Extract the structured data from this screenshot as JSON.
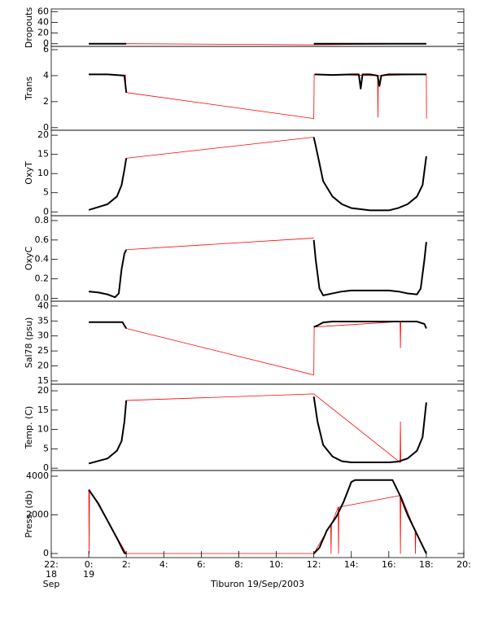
{
  "chart_data": [
    {
      "type": "line",
      "ylabel": "Dropouts",
      "xlim": [
        -2,
        20
      ],
      "ylim": [
        -5,
        65
      ],
      "yticks": [
        0,
        20,
        40,
        60
      ],
      "series": [
        {
          "color": "#ff0000",
          "x": [
            0,
            2,
            12,
            18
          ],
          "values": [
            0,
            0,
            -2,
            0
          ]
        },
        {
          "color": "#000000",
          "x": [
            0,
            2,
            7,
            12,
            18
          ],
          "values": [
            0,
            0,
            null,
            0,
            0
          ]
        }
      ]
    },
    {
      "type": "line",
      "ylabel": "Trans",
      "xlim": [
        -2,
        20
      ],
      "ylim": [
        -0.2,
        6.25
      ],
      "yticks": [
        0,
        2,
        4,
        6
      ],
      "series": [
        {
          "color": "#ff0000",
          "x": [
            1.95,
            2,
            12,
            12.02,
            15.4,
            15.42,
            15.44,
            18,
            18.01
          ],
          "values": [
            4.1,
            2.7,
            0.7,
            4.1,
            4.0,
            0.8,
            4.0,
            4.1,
            0.7
          ]
        },
        {
          "color": "#000000",
          "x": [
            0,
            1,
            1.9,
            2,
            7,
            12.05,
            13,
            14,
            14.4,
            14.5,
            14.6,
            15,
            15.4,
            15.5,
            15.6,
            16,
            17,
            18
          ],
          "values": [
            4.1,
            4.1,
            4.0,
            2.7,
            null,
            4.1,
            4.05,
            4.1,
            4.1,
            3.0,
            4.1,
            4.1,
            4.0,
            3.2,
            4.0,
            4.1,
            4.1,
            4.1
          ]
        }
      ]
    },
    {
      "type": "line",
      "ylabel": "OxyT",
      "xlim": [
        -2,
        20
      ],
      "ylim": [
        -1,
        21.3
      ],
      "yticks": [
        0,
        5,
        10,
        15,
        20
      ],
      "series": [
        {
          "color": "#ff0000",
          "x": [
            2,
            12
          ],
          "values": [
            14,
            19.5
          ]
        },
        {
          "color": "#000000",
          "x": [
            0,
            1,
            1.5,
            1.75,
            1.9,
            2,
            7,
            12,
            12.2,
            12.5,
            13,
            13.5,
            14,
            15,
            16,
            16.5,
            17,
            17.5,
            17.8,
            18
          ],
          "values": [
            0.5,
            2,
            4,
            7,
            11,
            14,
            null,
            19.5,
            15,
            8,
            4,
            2,
            1,
            0.4,
            0.4,
            1,
            2,
            4,
            7,
            14.5
          ]
        }
      ]
    },
    {
      "type": "line",
      "ylabel": "OxyC",
      "xlim": [
        -2,
        20
      ],
      "ylim": [
        -0.03,
        0.85
      ],
      "yticks": [
        {
          "value": 0,
          "label": "0.0"
        },
        0.2,
        0.4,
        0.6,
        0.8
      ],
      "series": [
        {
          "color": "#ff0000",
          "x": [
            2,
            12
          ],
          "values": [
            0.5,
            0.62
          ]
        },
        {
          "color": "#000000",
          "x": [
            0,
            0.5,
            1,
            1.4,
            1.6,
            1.75,
            1.9,
            2,
            7,
            12,
            12.1,
            12.3,
            12.5,
            13,
            13.5,
            14,
            16,
            16.5,
            17,
            17.5,
            17.7,
            17.9,
            18
          ],
          "values": [
            0.07,
            0.06,
            0.04,
            0.01,
            0.05,
            0.3,
            0.46,
            0.5,
            null,
            0.6,
            0.4,
            0.1,
            0.03,
            0.05,
            0.07,
            0.08,
            0.08,
            0.07,
            0.05,
            0.04,
            0.1,
            0.4,
            0.58
          ]
        }
      ]
    },
    {
      "type": "line",
      "ylabel": "Sal78 (psu)",
      "xlim": [
        -2,
        20
      ],
      "ylim": [
        13.9,
        41.6
      ],
      "yticks": [
        15,
        20,
        25,
        30,
        35,
        40
      ],
      "series": [
        {
          "color": "#ff0000",
          "x": [
            2,
            12,
            12.02,
            16.6,
            16.62,
            16.64
          ],
          "values": [
            32.5,
            17,
            33,
            34.8,
            26,
            34.8
          ]
        },
        {
          "color": "#000000",
          "x": [
            0,
            1.8,
            1.9,
            2,
            7,
            12,
            12.2,
            12.5,
            13,
            17.5,
            17.9,
            18
          ],
          "values": [
            34.6,
            34.6,
            33.5,
            32.5,
            null,
            33,
            33.5,
            34.5,
            34.8,
            34.8,
            34,
            32.5
          ]
        }
      ]
    },
    {
      "type": "line",
      "ylabel": "Temp. (C)",
      "xlim": [
        -2,
        20
      ],
      "ylim": [
        -0.6,
        21.7
      ],
      "yticks": [
        0,
        5,
        10,
        15,
        20
      ],
      "series": [
        {
          "color": "#ff0000",
          "x": [
            2,
            12,
            16.6,
            16.62,
            16.64
          ],
          "values": [
            17.5,
            19.2,
            1.5,
            12,
            1.5
          ]
        },
        {
          "color": "#000000",
          "x": [
            0,
            1,
            1.5,
            1.75,
            1.9,
            2,
            7,
            12,
            12.2,
            12.5,
            13,
            13.5,
            14,
            16,
            16.5,
            17,
            17.5,
            17.8,
            18
          ],
          "values": [
            1.2,
            2.5,
            4.5,
            7,
            12,
            17.5,
            null,
            18.5,
            12,
            6,
            3,
            1.8,
            1.5,
            1.5,
            1.7,
            2.5,
            4.5,
            8,
            17
          ]
        }
      ]
    },
    {
      "type": "line",
      "ylabel": "Press. (db)",
      "xlim": [
        -2,
        20
      ],
      "ylim": [
        -210,
        4295
      ],
      "yticks": [
        0,
        2000,
        4000
      ],
      "xticks": [
        {
          "value": -2,
          "label": "22:"
        },
        {
          "value": 0,
          "label": "0:"
        },
        {
          "value": 2,
          "label": "2:"
        },
        {
          "value": 4,
          "label": "4:"
        },
        {
          "value": 6,
          "label": "6:"
        },
        {
          "value": 8,
          "label": "8:"
        },
        {
          "value": 10,
          "label": "10:"
        },
        {
          "value": 12,
          "label": "12:"
        },
        {
          "value": 14,
          "label": "14:"
        },
        {
          "value": 16,
          "label": "16:"
        },
        {
          "value": 18,
          "label": "18:"
        },
        {
          "value": 20,
          "label": "20:"
        }
      ],
      "xtick_sublabels": [
        {
          "value": -2,
          "lines": [
            "18",
            "Sep"
          ]
        },
        {
          "value": 0,
          "lines": [
            "19"
          ]
        }
      ],
      "xlabel": "Tiburon 19/Sep/2003",
      "series": [
        {
          "color": "#ff0000",
          "x": [
            0,
            0.02,
            0.04,
            2,
            12,
            12.9,
            12.92,
            12.94,
            13.3,
            13.32,
            13.34,
            16.6,
            16.62,
            16.64,
            17.4,
            17.42,
            17.44
          ],
          "values": [
            3300,
            0,
            3300,
            0,
            0,
            1500,
            0,
            1500,
            2400,
            0,
            2400,
            3000,
            0,
            3000,
            1200,
            0,
            1200
          ]
        },
        {
          "color": "#000000",
          "x": [
            0,
            0.5,
            1,
            1.5,
            1.9,
            2,
            7,
            12,
            12.3,
            12.7,
            13.2,
            13.6,
            14,
            14.2,
            16.2,
            16.6,
            17,
            17.5,
            18
          ],
          "values": [
            3300,
            2600,
            1700,
            800,
            30,
            0,
            null,
            0,
            300,
            1200,
            1900,
            2700,
            3700,
            3800,
            3800,
            3000,
            2000,
            1000,
            0
          ]
        }
      ]
    }
  ]
}
